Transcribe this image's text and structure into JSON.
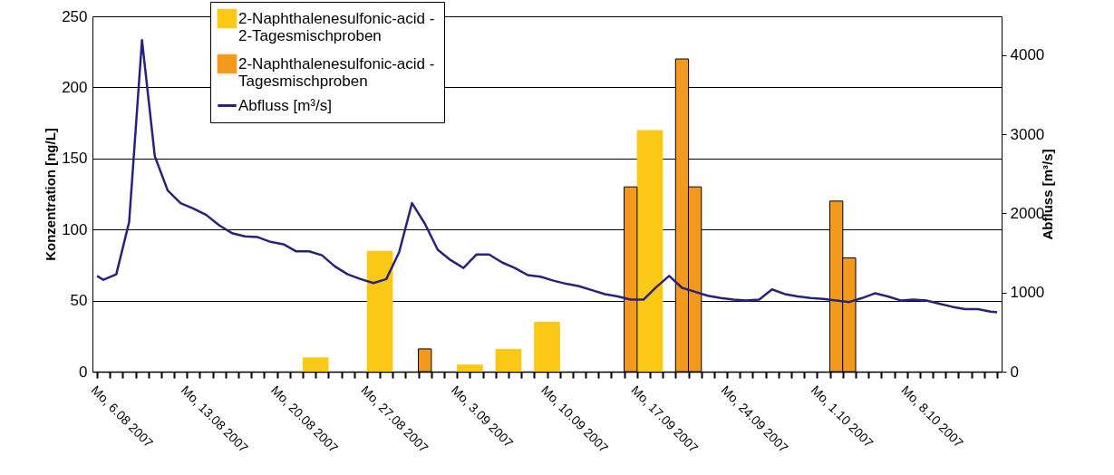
{
  "chart_data": {
    "type": "bar",
    "ylabel": "Konzentration [ng/L]",
    "y2label": "Abfluss [m³/s]",
    "legend": "top",
    "grid": "y",
    "xlim": [
      "2007-08-06",
      "2007-10-15"
    ],
    "xticks": [
      {
        "value": "2007-08-06",
        "label": "Mo, 6.08 2007"
      },
      {
        "value": "2007-08-07",
        "label": null
      },
      {
        "value": "2007-08-08",
        "label": null
      },
      {
        "value": "2007-08-09",
        "label": null
      },
      {
        "value": "2007-08-10",
        "label": null
      },
      {
        "value": "2007-08-11",
        "label": null
      },
      {
        "value": "2007-08-12",
        "label": null
      },
      {
        "value": "2007-08-13",
        "label": "Mo, 13.08 2007"
      },
      {
        "value": "2007-08-14",
        "label": null
      },
      {
        "value": "2007-08-15",
        "label": null
      },
      {
        "value": "2007-08-16",
        "label": null
      },
      {
        "value": "2007-08-17",
        "label": null
      },
      {
        "value": "2007-08-18",
        "label": null
      },
      {
        "value": "2007-08-19",
        "label": null
      },
      {
        "value": "2007-08-20",
        "label": "Mo, 20.08 2007"
      },
      {
        "value": "2007-08-21",
        "label": null
      },
      {
        "value": "2007-08-22",
        "label": null
      },
      {
        "value": "2007-08-23",
        "label": null
      },
      {
        "value": "2007-08-24",
        "label": null
      },
      {
        "value": "2007-08-25",
        "label": null
      },
      {
        "value": "2007-08-26",
        "label": null
      },
      {
        "value": "2007-08-27",
        "label": "Mo, 27.08 2007"
      },
      {
        "value": "2007-08-28",
        "label": null
      },
      {
        "value": "2007-08-29",
        "label": null
      },
      {
        "value": "2007-08-30",
        "label": null
      },
      {
        "value": "2007-08-31",
        "label": null
      },
      {
        "value": "2007-09-01",
        "label": null
      },
      {
        "value": "2007-09-02",
        "label": null
      },
      {
        "value": "2007-09-03",
        "label": "Mo, 3.09 2007"
      },
      {
        "value": "2007-09-04",
        "label": null
      },
      {
        "value": "2007-09-05",
        "label": null
      },
      {
        "value": "2007-09-06",
        "label": null
      },
      {
        "value": "2007-09-07",
        "label": null
      },
      {
        "value": "2007-09-08",
        "label": null
      },
      {
        "value": "2007-09-09",
        "label": null
      },
      {
        "value": "2007-09-10",
        "label": "Mo, 10.09 2007"
      },
      {
        "value": "2007-09-11",
        "label": null
      },
      {
        "value": "2007-09-12",
        "label": null
      },
      {
        "value": "2007-09-13",
        "label": null
      },
      {
        "value": "2007-09-14",
        "label": null
      },
      {
        "value": "2007-09-15",
        "label": null
      },
      {
        "value": "2007-09-16",
        "label": null
      },
      {
        "value": "2007-09-17",
        "label": "Mo, 17.09 2007"
      },
      {
        "value": "2007-09-18",
        "label": null
      },
      {
        "value": "2007-09-19",
        "label": null
      },
      {
        "value": "2007-09-20",
        "label": null
      },
      {
        "value": "2007-09-21",
        "label": null
      },
      {
        "value": "2007-09-22",
        "label": null
      },
      {
        "value": "2007-09-23",
        "label": null
      },
      {
        "value": "2007-09-24",
        "label": "Mo, 24.09 2007"
      },
      {
        "value": "2007-09-25",
        "label": null
      },
      {
        "value": "2007-09-26",
        "label": null
      },
      {
        "value": "2007-09-27",
        "label": null
      },
      {
        "value": "2007-09-28",
        "label": null
      },
      {
        "value": "2007-09-29",
        "label": null
      },
      {
        "value": "2007-09-30",
        "label": null
      },
      {
        "value": "2007-10-01",
        "label": "Mo, 1.10 2007"
      },
      {
        "value": "2007-10-02",
        "label": null
      },
      {
        "value": "2007-10-03",
        "label": null
      },
      {
        "value": "2007-10-04",
        "label": null
      },
      {
        "value": "2007-10-05",
        "label": null
      },
      {
        "value": "2007-10-06",
        "label": null
      },
      {
        "value": "2007-10-07",
        "label": null
      },
      {
        "value": "2007-10-08",
        "label": "Mo, 8.10 2007"
      },
      {
        "value": "2007-10-09",
        "label": null
      },
      {
        "value": "2007-10-10",
        "label": null
      },
      {
        "value": "2007-10-11",
        "label": null
      },
      {
        "value": "2007-10-12",
        "label": null
      },
      {
        "value": "2007-10-13",
        "label": null
      },
      {
        "value": "2007-10-14",
        "label": null
      },
      {
        "value": "2007-10-15",
        "label": null
      }
    ],
    "ylim": [
      0,
      250
    ],
    "yticks": [
      0,
      50,
      100,
      150,
      200,
      250
    ],
    "y2lim": [
      0,
      4490
    ],
    "y2ticks": [
      0,
      1000,
      2000,
      3000,
      4000
    ],
    "series": [
      {
        "name": "2-Naphthalenesulfonic-acid - 2-Tagesmischproben",
        "color": "#fcc816",
        "x": [
          "2007-08-23",
          "2007-08-28",
          "2007-09-04",
          "2007-09-07",
          "2007-09-10",
          "2007-09-18"
        ],
        "values": [
          10,
          85,
          5,
          16,
          35,
          170
        ]
      },
      {
        "name": "2-Naphthalenesulfonic-acid - Tagesmischproben",
        "color": "#f39a1e",
        "x": [
          "2007-08-31T12:00",
          "2007-09-16T12:00",
          "2007-09-20T12:00",
          "2007-09-21T12:00",
          "2007-10-02T12:00",
          "2007-10-03T12:00"
        ],
        "values": [
          16,
          130,
          220,
          130,
          120,
          80
        ]
      },
      {
        "name": "Abfluss [m³/s]",
        "type": "line",
        "axis": "y2",
        "color": "#28237a",
        "x": [
          "2007-08-06T00:00",
          "2007-08-06T12:00",
          "2007-08-07T12:00",
          "2007-08-08T12:00",
          "2007-08-09T12:00",
          "2007-08-10T12:00",
          "2007-08-11T12:00",
          "2007-08-12T12:00",
          "2007-08-13T12:00",
          "2007-08-14T12:00",
          "2007-08-15T12:00",
          "2007-08-16T12:00",
          "2007-08-17T12:00",
          "2007-08-18T12:00",
          "2007-08-19T12:00",
          "2007-08-20T12:00",
          "2007-08-21T12:00",
          "2007-08-22T12:00",
          "2007-08-23T12:00",
          "2007-08-24T12:00",
          "2007-08-25T12:00",
          "2007-08-26T12:00",
          "2007-08-27T12:00",
          "2007-08-28T12:00",
          "2007-08-29T12:00",
          "2007-08-30T12:00",
          "2007-08-31T12:00",
          "2007-09-01T12:00",
          "2007-09-02T12:00",
          "2007-09-03T12:00",
          "2007-09-04T12:00",
          "2007-09-05T12:00",
          "2007-09-06T12:00",
          "2007-09-07T12:00",
          "2007-09-08T12:00",
          "2007-09-09T12:00",
          "2007-09-10T12:00",
          "2007-09-11T12:00",
          "2007-09-12T12:00",
          "2007-09-13T12:00",
          "2007-09-14T12:00",
          "2007-09-15T12:00",
          "2007-09-16T12:00",
          "2007-09-17T12:00",
          "2007-09-18T12:00",
          "2007-09-19T12:00",
          "2007-09-20T12:00",
          "2007-09-21T12:00",
          "2007-09-22T12:00",
          "2007-09-23T12:00",
          "2007-09-24T12:00",
          "2007-09-25T12:00",
          "2007-09-26T12:00",
          "2007-09-27T12:00",
          "2007-09-28T12:00",
          "2007-09-29T12:00",
          "2007-09-30T12:00",
          "2007-10-01T12:00",
          "2007-10-02T12:00",
          "2007-10-03T12:00",
          "2007-10-04T12:00",
          "2007-10-05T12:00",
          "2007-10-06T12:00",
          "2007-10-07T12:00",
          "2007-10-08T12:00",
          "2007-10-09T12:00",
          "2007-10-10T12:00",
          "2007-10-11T12:00",
          "2007-10-12T12:00",
          "2007-10-13T12:00",
          "2007-10-14T12:00",
          "2007-10-15T00:00"
        ],
        "values": [
          1210,
          1160,
          1230,
          1890,
          4190,
          2720,
          2290,
          2130,
          2060,
          1980,
          1850,
          1750,
          1710,
          1700,
          1640,
          1610,
          1520,
          1520,
          1470,
          1330,
          1230,
          1170,
          1120,
          1170,
          1510,
          2130,
          1870,
          1540,
          1410,
          1310,
          1480,
          1480,
          1380,
          1310,
          1220,
          1200,
          1150,
          1110,
          1080,
          1030,
          980,
          950,
          910,
          910,
          1070,
          1210,
          1060,
          1010,
          960,
          930,
          910,
          900,
          910,
          1040,
          980,
          950,
          930,
          920,
          900,
          880,
          930,
          990,
          950,
          900,
          910,
          900,
          860,
          820,
          790,
          790,
          760,
          750
        ]
      }
    ]
  }
}
